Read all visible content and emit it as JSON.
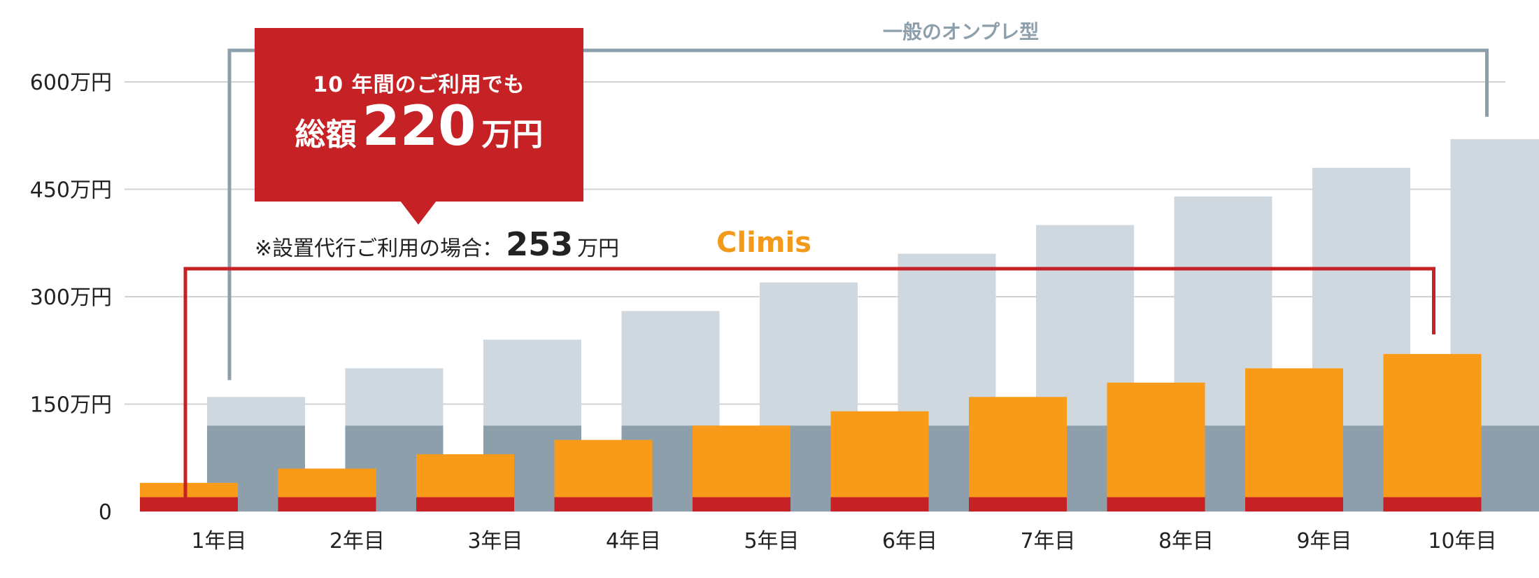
{
  "chart_data": {
    "type": "bar",
    "categories": [
      "1年目",
      "2年目",
      "3年目",
      "4年目",
      "5年目",
      "6年目",
      "7年目",
      "8年目",
      "9年目",
      "10年目"
    ],
    "y_ticks": [
      "0",
      "150万円",
      "300万円",
      "450万円",
      "600万円"
    ],
    "ylim": [
      0,
      600
    ],
    "grid": true,
    "series": [
      {
        "name": "一般のオンプレ型",
        "stack": "onpre",
        "values": [
          120,
          120,
          120,
          120,
          120,
          120,
          120,
          120,
          120,
          120
        ]
      },
      {
        "name": "一般のオンプレ型",
        "stack": "onpre",
        "values": [
          40,
          80,
          120,
          160,
          200,
          240,
          280,
          320,
          360,
          400
        ]
      },
      {
        "name": "Climis",
        "stack": "climis",
        "values": [
          20,
          20,
          20,
          20,
          20,
          20,
          20,
          20,
          20,
          20
        ]
      },
      {
        "name": "Climis",
        "stack": "climis",
        "values": [
          20,
          40,
          60,
          80,
          100,
          120,
          140,
          160,
          180,
          200
        ]
      }
    ],
    "colors": {
      "onpre_base": "#8e9fac",
      "onpre_top": "#d0d8df",
      "climis_base": "#c62124",
      "climis_top": "#f99b18",
      "grid": "#d2d2d2",
      "bracket_onpre": "#8e9fac",
      "bracket_climis": "#c62124"
    },
    "annotations": {
      "onpre_label": "一般のオンプレ型",
      "climis_label": "Climis",
      "callout_line1": "10 年間のご利用でも",
      "callout_prefix": "総額",
      "callout_value": "220",
      "callout_unit": "万円",
      "note_prefix": "※設置代行ご利用の場合：",
      "note_value": "253",
      "note_unit": "万円"
    }
  }
}
